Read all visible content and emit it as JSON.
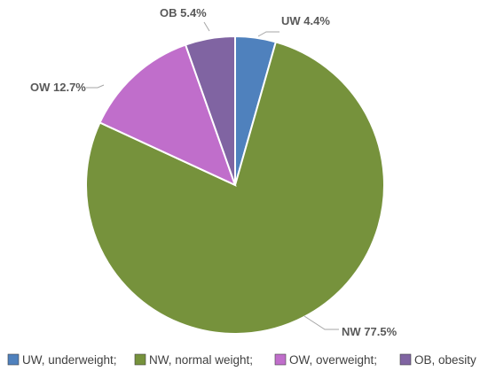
{
  "chart_data": {
    "type": "pie",
    "start_angle_deg": 0,
    "direction": "clockwise",
    "slices": [
      {
        "key": "UW",
        "label": "UW 4.4%",
        "legend": "UW, underweight;",
        "value": 4.4,
        "color": "#4f81bd"
      },
      {
        "key": "NW",
        "label": "NW 77.5%",
        "legend": "NW, normal weight;",
        "value": 77.5,
        "color": "#76923c"
      },
      {
        "key": "OW",
        "label": "OW 12.7%",
        "legend": "OW, overweight;",
        "value": 12.7,
        "color": "#c06ecb"
      },
      {
        "key": "OB",
        "label": "OB 5.4%",
        "legend": "OB, obesity",
        "value": 5.4,
        "color": "#8064a2"
      }
    ],
    "legend_position": "bottom",
    "slice_border_color": "#ffffff",
    "leader_line_color": "#a6a6a6"
  }
}
